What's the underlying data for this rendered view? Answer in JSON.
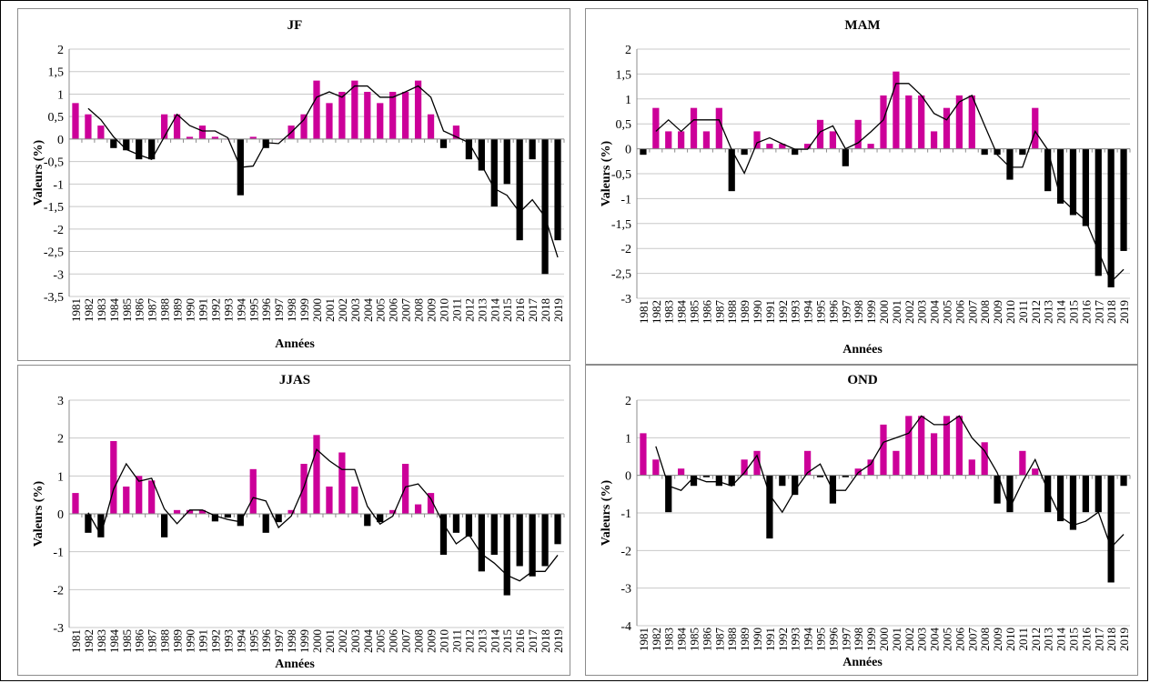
{
  "chart_data": [
    {
      "type": "bar",
      "title": "JF",
      "xlabel": "Années",
      "ylabel": "Valeurs (%)",
      "ylim": [
        -3.5,
        2
      ],
      "yticks": [
        2,
        1.5,
        1,
        0.5,
        0,
        -0.5,
        -1,
        -1.5,
        -2,
        -2.5,
        -3,
        -3.5
      ],
      "ytick_labels": [
        "2",
        "1,5",
        "1",
        "0,5",
        "0",
        "-0,5",
        "-1",
        "-1,5",
        "-2",
        "-2,5",
        "-3",
        "-3,5"
      ],
      "grid": true,
      "legend": "none",
      "colors": {
        "positive": "#cc0099",
        "negative": "#000000",
        "line": "#000000"
      },
      "categories": [
        "1981",
        "1982",
        "1983",
        "1984",
        "1985",
        "1986",
        "1987",
        "1988",
        "1989",
        "1990",
        "1991",
        "1992",
        "1993",
        "1994",
        "1995",
        "1996",
        "1997",
        "1998",
        "1999",
        "2000",
        "2001",
        "2002",
        "2003",
        "2004",
        "2005",
        "2006",
        "2007",
        "2008",
        "2009",
        "2010",
        "2011",
        "2012",
        "2013",
        "2014",
        "2015",
        "2016",
        "2017",
        "2018",
        "2019"
      ],
      "values": [
        0.8,
        0.55,
        0.3,
        -0.2,
        -0.25,
        -0.45,
        -0.45,
        0.55,
        0.55,
        0.05,
        0.3,
        0.05,
        0.0,
        -1.25,
        0.05,
        -0.2,
        0.0,
        0.3,
        0.55,
        1.3,
        0.8,
        1.05,
        1.3,
        1.05,
        0.8,
        1.05,
        1.05,
        1.3,
        0.55,
        -0.2,
        0.3,
        -0.45,
        -0.7,
        -1.5,
        -1.0,
        -2.25,
        -0.45,
        -3.0,
        -2.25
      ],
      "moving_average": [
        null,
        0.68,
        0.43,
        0.05,
        -0.23,
        -0.35,
        -0.45,
        0.05,
        0.55,
        0.3,
        0.18,
        0.18,
        0.03,
        -0.63,
        -0.6,
        -0.08,
        -0.1,
        0.15,
        0.43,
        0.93,
        1.05,
        0.93,
        1.18,
        1.18,
        0.93,
        0.93,
        1.05,
        1.18,
        0.93,
        0.18,
        0.05,
        -0.08,
        -0.58,
        -1.1,
        -1.25,
        -1.63,
        -1.35,
        -1.73,
        -2.63
      ]
    },
    {
      "type": "bar",
      "title": "MAM",
      "xlabel": "Années",
      "ylabel": "Valeurs (%)",
      "ylim": [
        -3,
        2
      ],
      "yticks": [
        2,
        1.5,
        1,
        0.5,
        0,
        -0.5,
        -1,
        -1.5,
        -2,
        -2.5,
        -3
      ],
      "ytick_labels": [
        "2",
        "1,5",
        "1",
        "0,5",
        "0",
        "-0,5",
        "-1",
        "-1,5",
        "-2",
        "-2,5",
        "-3"
      ],
      "grid": true,
      "legend": "none",
      "colors": {
        "positive": "#cc0099",
        "negative": "#000000",
        "line": "#000000"
      },
      "categories": [
        "1981",
        "1982",
        "1983",
        "1984",
        "1985",
        "1986",
        "1987",
        "1988",
        "1989",
        "1990",
        "1991",
        "1992",
        "1993",
        "1994",
        "1995",
        "1996",
        "1997",
        "1998",
        "1999",
        "2000",
        "2001",
        "2002",
        "2003",
        "2004",
        "2005",
        "2006",
        "2007",
        "2008",
        "2009",
        "2010",
        "2011",
        "2012",
        "2013",
        "2014",
        "2015",
        "2016",
        "2017",
        "2018",
        "2019"
      ],
      "values": [
        -0.12,
        0.82,
        0.35,
        0.35,
        0.82,
        0.35,
        0.82,
        -0.85,
        -0.12,
        0.35,
        0.1,
        0.1,
        -0.12,
        0.1,
        0.58,
        0.35,
        -0.35,
        0.58,
        0.1,
        1.07,
        1.55,
        1.07,
        1.07,
        0.35,
        0.82,
        1.07,
        1.07,
        -0.12,
        -0.12,
        -0.62,
        -0.12,
        0.82,
        -0.85,
        -1.1,
        -1.33,
        -1.55,
        -2.55,
        -2.78,
        -2.05
      ],
      "moving_average": [
        null,
        0.35,
        0.58,
        0.35,
        0.58,
        0.58,
        0.58,
        -0.02,
        -0.49,
        0.12,
        0.22,
        0.1,
        -0.01,
        -0.01,
        0.34,
        0.46,
        0.0,
        0.12,
        0.34,
        0.58,
        1.31,
        1.31,
        1.07,
        0.71,
        0.58,
        0.94,
        1.07,
        0.47,
        -0.12,
        -0.37,
        -0.37,
        0.35,
        -0.02,
        -0.98,
        -1.22,
        -1.44,
        -2.05,
        -2.67,
        -2.42
      ]
    },
    {
      "type": "bar",
      "title": "JJAS",
      "xlabel": "Années",
      "ylabel": "Valeurs (%)",
      "ylim": [
        -3,
        3
      ],
      "yticks": [
        3,
        2,
        1,
        0,
        -1,
        -2,
        -3
      ],
      "ytick_labels": [
        "3",
        "2",
        "1",
        "0",
        "-1",
        "-2",
        "-3"
      ],
      "grid": true,
      "legend": "none",
      "colors": {
        "positive": "#cc0099",
        "negative": "#000000",
        "line": "#000000"
      },
      "categories": [
        "1981",
        "1982",
        "1983",
        "1984",
        "1985",
        "1986",
        "1987",
        "1988",
        "1989",
        "1990",
        "1991",
        "1992",
        "1993",
        "1994",
        "1995",
        "1996",
        "1997",
        "1998",
        "1999",
        "2000",
        "2001",
        "2002",
        "2003",
        "2004",
        "2005",
        "2006",
        "2007",
        "2008",
        "2009",
        "2010",
        "2011",
        "2012",
        "2013",
        "2014",
        "2015",
        "2016",
        "2017",
        "2018",
        "2019"
      ],
      "values": [
        0.55,
        -0.5,
        -0.62,
        1.92,
        0.72,
        1.0,
        0.88,
        -0.62,
        0.1,
        0.1,
        0.1,
        -0.2,
        -0.1,
        -0.32,
        1.18,
        -0.5,
        -0.22,
        0.1,
        1.32,
        2.08,
        0.72,
        1.62,
        0.72,
        -0.32,
        -0.22,
        0.1,
        1.32,
        0.25,
        0.55,
        -1.08,
        -0.5,
        -0.6,
        -1.52,
        -1.08,
        -2.15,
        -1.38,
        -1.65,
        -1.38,
        -0.8
      ],
      "moving_average": [
        null,
        0.03,
        -0.56,
        0.65,
        1.32,
        0.86,
        0.94,
        0.13,
        -0.26,
        0.1,
        0.1,
        -0.05,
        -0.15,
        -0.21,
        0.43,
        0.34,
        -0.36,
        -0.06,
        0.71,
        1.7,
        1.4,
        1.17,
        1.17,
        0.2,
        -0.27,
        -0.06,
        0.71,
        0.79,
        0.4,
        -0.27,
        -0.79,
        -0.55,
        -1.06,
        -1.3,
        -1.62,
        -1.77,
        -1.52,
        -1.52,
        -1.09
      ]
    },
    {
      "type": "bar",
      "title": "OND",
      "xlabel": "Années",
      "ylabel": "Valeurs (%)",
      "ylim": [
        -4,
        2
      ],
      "yticks": [
        2,
        1,
        0,
        -1,
        -2,
        -3,
        -4
      ],
      "ytick_labels": [
        "2",
        "1",
        "0",
        "-1",
        "-2",
        "-3",
        "-4"
      ],
      "grid": true,
      "legend": "none",
      "colors": {
        "positive": "#cc0099",
        "negative": "#000000",
        "line": "#000000"
      },
      "categories": [
        "1981",
        "1982",
        "1983",
        "1984",
        "1985",
        "1986",
        "1987",
        "1988",
        "1989",
        "1990",
        "1991",
        "1992",
        "1993",
        "1994",
        "1995",
        "1996",
        "1997",
        "1998",
        "1999",
        "2000",
        "2001",
        "2002",
        "2003",
        "2004",
        "2005",
        "2006",
        "2007",
        "2008",
        "2009",
        "2010",
        "2011",
        "2012",
        "2013",
        "2014",
        "2015",
        "2016",
        "2017",
        "2018",
        "2019"
      ],
      "values": [
        1.12,
        0.42,
        -0.98,
        0.18,
        -0.28,
        -0.05,
        -0.28,
        -0.28,
        0.42,
        0.65,
        -1.68,
        -0.28,
        -0.52,
        0.65,
        -0.05,
        -0.75,
        -0.05,
        0.18,
        0.42,
        1.35,
        0.65,
        1.58,
        1.58,
        1.12,
        1.58,
        1.58,
        0.42,
        0.88,
        -0.75,
        -0.98,
        0.65,
        0.18,
        -0.98,
        -1.22,
        -1.45,
        -0.98,
        -0.98,
        -2.85,
        -0.28
      ],
      "moving_average": [
        null,
        0.77,
        -0.28,
        -0.4,
        -0.05,
        -0.17,
        -0.17,
        -0.28,
        0.07,
        0.53,
        -0.52,
        -0.98,
        -0.4,
        0.07,
        0.3,
        -0.4,
        -0.4,
        0.07,
        0.3,
        0.88,
        1.0,
        1.12,
        1.58,
        1.35,
        1.35,
        1.58,
        1.0,
        0.65,
        0.07,
        -0.87,
        -0.17,
        0.42,
        -0.4,
        -1.1,
        -1.33,
        -1.22,
        -0.98,
        -1.92,
        -1.57
      ]
    }
  ]
}
